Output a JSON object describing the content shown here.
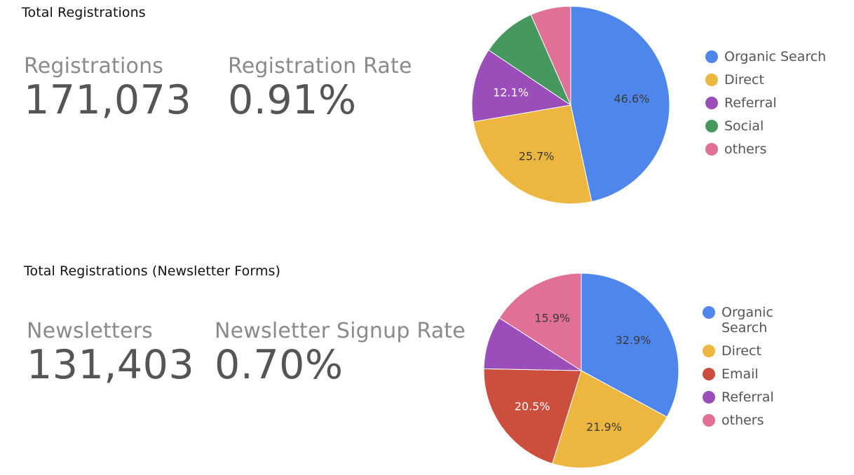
{
  "sections": [
    {
      "title": "Total Registrations",
      "kpis": [
        {
          "label": "Registrations",
          "value": "171,073"
        },
        {
          "label": "Registration Rate",
          "value": "0.91%"
        }
      ]
    },
    {
      "title": "Total Registrations (Newsletter Forms)",
      "kpis": [
        {
          "label": "Newsletters",
          "value": "131,403"
        },
        {
          "label": "Newsletter Signup Rate",
          "value": "0.70%"
        }
      ]
    }
  ],
  "chart_data": [
    {
      "type": "pie",
      "title": "",
      "legend_position": "right",
      "slices": [
        {
          "name": "Organic Search",
          "value": 46.6,
          "label": "46.6%",
          "color": "#4e86ec"
        },
        {
          "name": "Direct",
          "value": 25.7,
          "label": "25.7%",
          "color": "#ecb63f"
        },
        {
          "name": "Referral",
          "value": 12.1,
          "label": "12.1%",
          "color": "#9b4dba"
        },
        {
          "name": "Social",
          "value": 9.0,
          "label": "",
          "color": "#47985e"
        },
        {
          "name": "others",
          "value": 6.6,
          "label": "",
          "color": "#e07095"
        }
      ]
    },
    {
      "type": "pie",
      "title": "",
      "legend_position": "right",
      "slices": [
        {
          "name": "Organic Search",
          "value": 32.9,
          "label": "32.9%",
          "color": "#4e86ec"
        },
        {
          "name": "Direct",
          "value": 21.9,
          "label": "21.9%",
          "color": "#ecb63f"
        },
        {
          "name": "Email",
          "value": 20.5,
          "label": "20.5%",
          "color": "#cc4e3c"
        },
        {
          "name": "Referral",
          "value": 8.8,
          "label": "",
          "color": "#9b4dba"
        },
        {
          "name": "others",
          "value": 15.9,
          "label": "15.9%",
          "color": "#e07095"
        }
      ]
    }
  ]
}
